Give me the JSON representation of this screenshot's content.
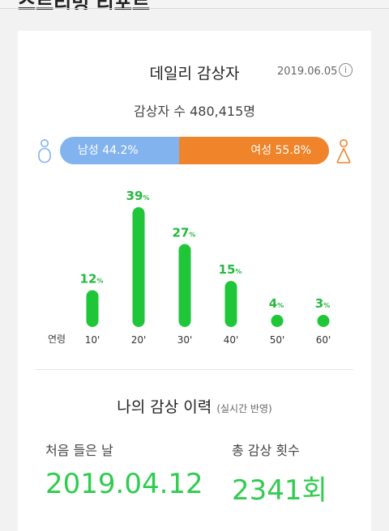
{
  "header": {
    "title": "스트리밍 리포트"
  },
  "daily": {
    "title": "데일리 감상자",
    "date": "2019.06.05",
    "info_icon": "i",
    "listeners": "감상자 수 480,415명"
  },
  "gender": {
    "male_label": "남성 44.2%",
    "female_label": "여성 55.8%",
    "male_ratio": 0.442,
    "female_ratio": 0.558,
    "male_color": "#82b3ee",
    "female_color": "#f0842a",
    "male_icon": "person-male-icon",
    "female_icon": "person-female-icon"
  },
  "age_axis_label": "연령",
  "chart_data": {
    "type": "bar",
    "categories": [
      "10'",
      "20'",
      "30'",
      "40'",
      "50'",
      "60'"
    ],
    "values": [
      12,
      39,
      27,
      15,
      4,
      3
    ],
    "unit": "%",
    "ylim": [
      0,
      39
    ],
    "grid": false,
    "bar_color": "#1ec638",
    "label_color": "#27b83f"
  },
  "history": {
    "title": "나의 감상 이력",
    "subtitle": "(실시간 반영)",
    "first_listened_label": "처음 들은 날",
    "first_listened_value": "2019.04.12",
    "total_count_label": "총 감상 횟수",
    "total_count_value": "2341회"
  }
}
